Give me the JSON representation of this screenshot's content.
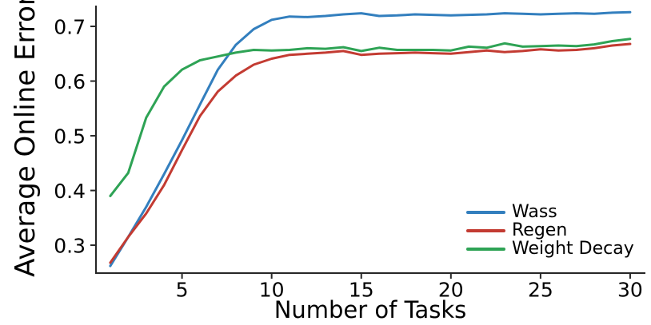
{
  "chart_data": {
    "type": "line",
    "title": "",
    "xlabel": "Number of Tasks",
    "ylabel": "Average Online Error",
    "grid": false,
    "legend_position": "lower right",
    "xlim": [
      0.2,
      30.85
    ],
    "ylim": [
      0.249,
      0.738
    ],
    "axis_color": "#262626",
    "text_color": "#000000",
    "x_ticks": [
      {
        "v": 5,
        "label": "5"
      },
      {
        "v": 10,
        "label": "10"
      },
      {
        "v": 15,
        "label": "15"
      },
      {
        "v": 20,
        "label": "20"
      },
      {
        "v": 25,
        "label": "25"
      },
      {
        "v": 30,
        "label": "30"
      }
    ],
    "y_ticks": [
      {
        "v": 0.3,
        "label": "0.3"
      },
      {
        "v": 0.4,
        "label": "0.4"
      },
      {
        "v": 0.5,
        "label": "0.5"
      },
      {
        "v": 0.6,
        "label": "0.6"
      },
      {
        "v": 0.7,
        "label": "0.7"
      }
    ],
    "x": [
      1,
      2,
      3,
      4,
      5,
      6,
      7,
      8,
      9,
      10,
      11,
      12,
      13,
      14,
      15,
      16,
      17,
      18,
      19,
      20,
      21,
      22,
      23,
      24,
      25,
      26,
      27,
      28,
      29,
      30
    ],
    "series": [
      {
        "name": "Wass",
        "color": "#337FBE",
        "values": [
          0.262,
          0.315,
          0.37,
          0.43,
          0.492,
          0.557,
          0.621,
          0.666,
          0.695,
          0.712,
          0.718,
          0.717,
          0.719,
          0.722,
          0.724,
          0.719,
          0.72,
          0.722,
          0.721,
          0.72,
          0.721,
          0.722,
          0.724,
          0.723,
          0.722,
          0.723,
          0.724,
          0.723,
          0.725,
          0.726
        ]
      },
      {
        "name": "Regen",
        "color": "#C33B32",
        "values": [
          0.268,
          0.315,
          0.358,
          0.41,
          0.474,
          0.536,
          0.581,
          0.61,
          0.63,
          0.641,
          0.648,
          0.65,
          0.652,
          0.655,
          0.648,
          0.65,
          0.651,
          0.652,
          0.651,
          0.65,
          0.653,
          0.656,
          0.653,
          0.655,
          0.658,
          0.656,
          0.657,
          0.66,
          0.665,
          0.668
        ]
      },
      {
        "name": "Weight Decay",
        "color": "#2EA355",
        "values": [
          0.39,
          0.432,
          0.533,
          0.59,
          0.621,
          0.638,
          0.645,
          0.652,
          0.657,
          0.656,
          0.657,
          0.66,
          0.659,
          0.662,
          0.655,
          0.661,
          0.657,
          0.657,
          0.657,
          0.656,
          0.663,
          0.661,
          0.669,
          0.663,
          0.664,
          0.665,
          0.664,
          0.667,
          0.673,
          0.677
        ]
      }
    ]
  }
}
